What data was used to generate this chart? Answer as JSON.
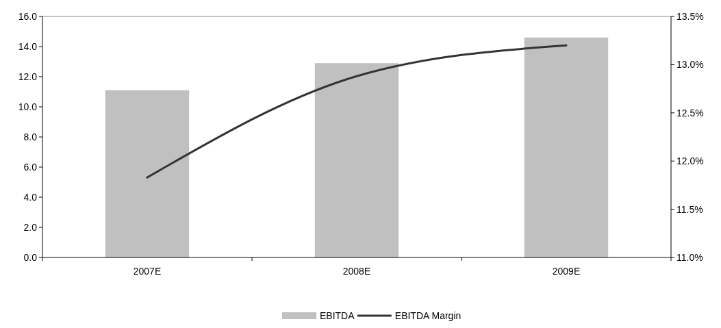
{
  "chart_data": {
    "type": "bar",
    "categories": [
      "2007E",
      "2008E",
      "2009E"
    ],
    "series": [
      {
        "name": "EBITDA",
        "color": "#c0c0c0",
        "values": [
          11.1,
          12.9,
          14.6
        ]
      },
      {
        "name": "EBITDA Margin",
        "type": "line",
        "axis": "y2",
        "color": "#333333",
        "values": [
          11.83,
          12.88,
          13.2
        ]
      }
    ],
    "ylim": [
      0,
      16
    ],
    "yticks": [
      {
        "value": 0,
        "label": "0.0"
      },
      {
        "value": 2,
        "label": "2.0"
      },
      {
        "value": 4,
        "label": "4.0"
      },
      {
        "value": 6,
        "label": "6.0"
      },
      {
        "value": 8,
        "label": "8.0"
      },
      {
        "value": 10,
        "label": "10.0"
      },
      {
        "value": 12,
        "label": "12.0"
      },
      {
        "value": 14,
        "label": "14.0"
      },
      {
        "value": 16,
        "label": "16.0"
      }
    ],
    "y2lim": [
      11,
      13.5
    ],
    "y2ticks": [
      {
        "value": 11,
        "label": "11.0%"
      },
      {
        "value": 11.5,
        "label": "11.5%"
      },
      {
        "value": 12,
        "label": "12.0%"
      },
      {
        "value": 12.5,
        "label": "12.5%"
      },
      {
        "value": 13,
        "label": "13.0%"
      },
      {
        "value": 13.5,
        "label": "13.5%"
      }
    ],
    "grid": false,
    "legend": "bottom",
    "marker": "none",
    "line_style": "solid"
  }
}
